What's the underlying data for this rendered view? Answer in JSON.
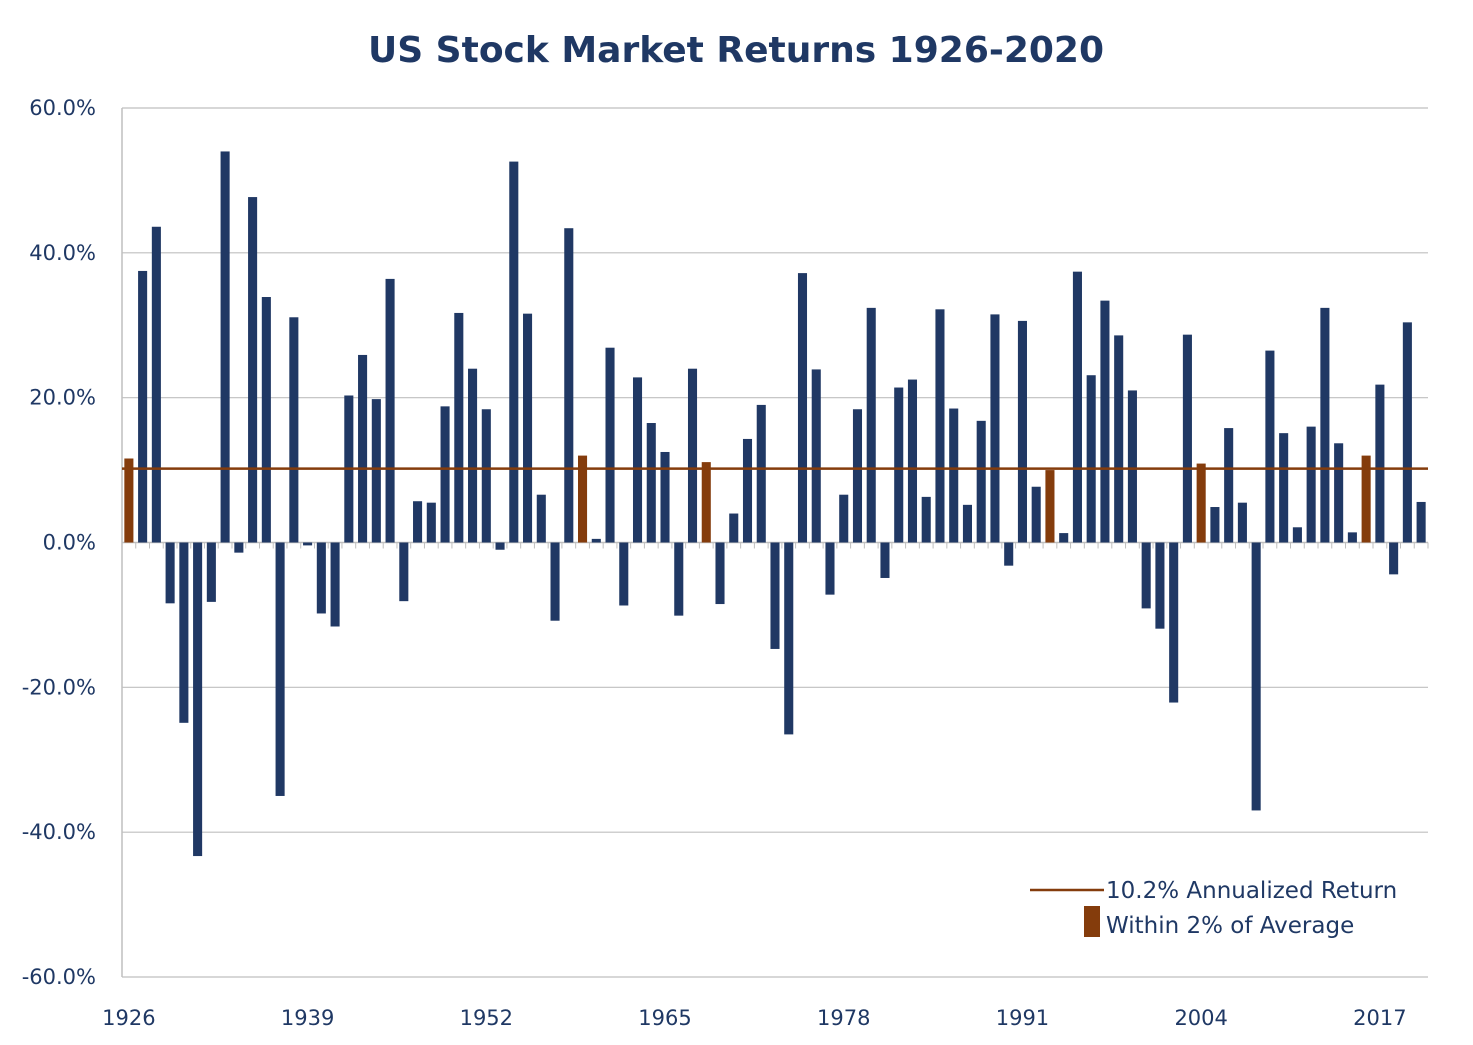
{
  "chart_data": {
    "type": "bar",
    "title": "US Stock Market Returns 1926-2020",
    "xlabel": "",
    "ylabel": "",
    "ylim": [
      -60,
      60
    ],
    "y_ticks": [
      "60.0%",
      "40.0%",
      "20.0%",
      "0.0%",
      "-20.0%",
      "-40.0%",
      "-60.0%"
    ],
    "x_tick_labels": [
      "1926",
      "1939",
      "1952",
      "1965",
      "1978",
      "1991",
      "2004",
      "2017"
    ],
    "grid": true,
    "legend_position": "bottom-right",
    "average_line": {
      "value": 10.2,
      "label": "10.2% Annualized Return"
    },
    "highlight_label": "Within 2% of Average",
    "highlight_rule": "within 2% of average",
    "colors": {
      "bar": "#203864",
      "highlight": "#843C0C",
      "average_line": "#843C0C",
      "text": "#1F3864",
      "grid": "#BFBFBF"
    },
    "categories": [
      1926,
      1927,
      1928,
      1929,
      1930,
      1931,
      1932,
      1933,
      1934,
      1935,
      1936,
      1937,
      1938,
      1939,
      1940,
      1941,
      1942,
      1943,
      1944,
      1945,
      1946,
      1947,
      1948,
      1949,
      1950,
      1951,
      1952,
      1953,
      1954,
      1955,
      1956,
      1957,
      1958,
      1959,
      1960,
      1961,
      1962,
      1963,
      1964,
      1965,
      1966,
      1967,
      1968,
      1969,
      1970,
      1971,
      1972,
      1973,
      1974,
      1975,
      1976,
      1977,
      1978,
      1979,
      1980,
      1981,
      1982,
      1983,
      1984,
      1985,
      1986,
      1987,
      1988,
      1989,
      1990,
      1991,
      1992,
      1993,
      1994,
      1995,
      1996,
      1997,
      1998,
      1999,
      2000,
      2001,
      2002,
      2003,
      2004,
      2005,
      2006,
      2007,
      2008,
      2009,
      2010,
      2011,
      2012,
      2013,
      2014,
      2015,
      2016,
      2017,
      2018,
      2019,
      2020
    ],
    "values": [
      11.6,
      37.5,
      43.6,
      -8.4,
      -24.9,
      -43.3,
      -8.2,
      54.0,
      -1.4,
      47.7,
      33.9,
      -35.0,
      31.1,
      -0.4,
      -9.8,
      -11.6,
      20.3,
      25.9,
      19.8,
      36.4,
      -8.1,
      5.7,
      5.5,
      18.8,
      31.7,
      24.0,
      18.4,
      -1.0,
      52.6,
      31.6,
      6.6,
      -10.8,
      43.4,
      12.0,
      0.5,
      26.9,
      -8.7,
      22.8,
      16.5,
      12.5,
      -10.1,
      24.0,
      11.1,
      -8.5,
      4.0,
      14.3,
      19.0,
      -14.7,
      -26.5,
      37.2,
      23.9,
      -7.2,
      6.6,
      18.4,
      32.4,
      -4.9,
      21.4,
      22.5,
      6.3,
      32.2,
      18.5,
      5.2,
      16.8,
      31.5,
      -3.2,
      30.6,
      7.7,
      10.0,
      1.3,
      37.4,
      23.1,
      33.4,
      28.6,
      21.0,
      -9.1,
      -11.9,
      -22.1,
      28.7,
      10.9,
      4.9,
      15.8,
      5.5,
      -37.0,
      26.5,
      15.1,
      2.1,
      16.0,
      32.4,
      13.7,
      1.4,
      12.0,
      21.8,
      -4.4,
      30.4,
      5.6
    ]
  }
}
